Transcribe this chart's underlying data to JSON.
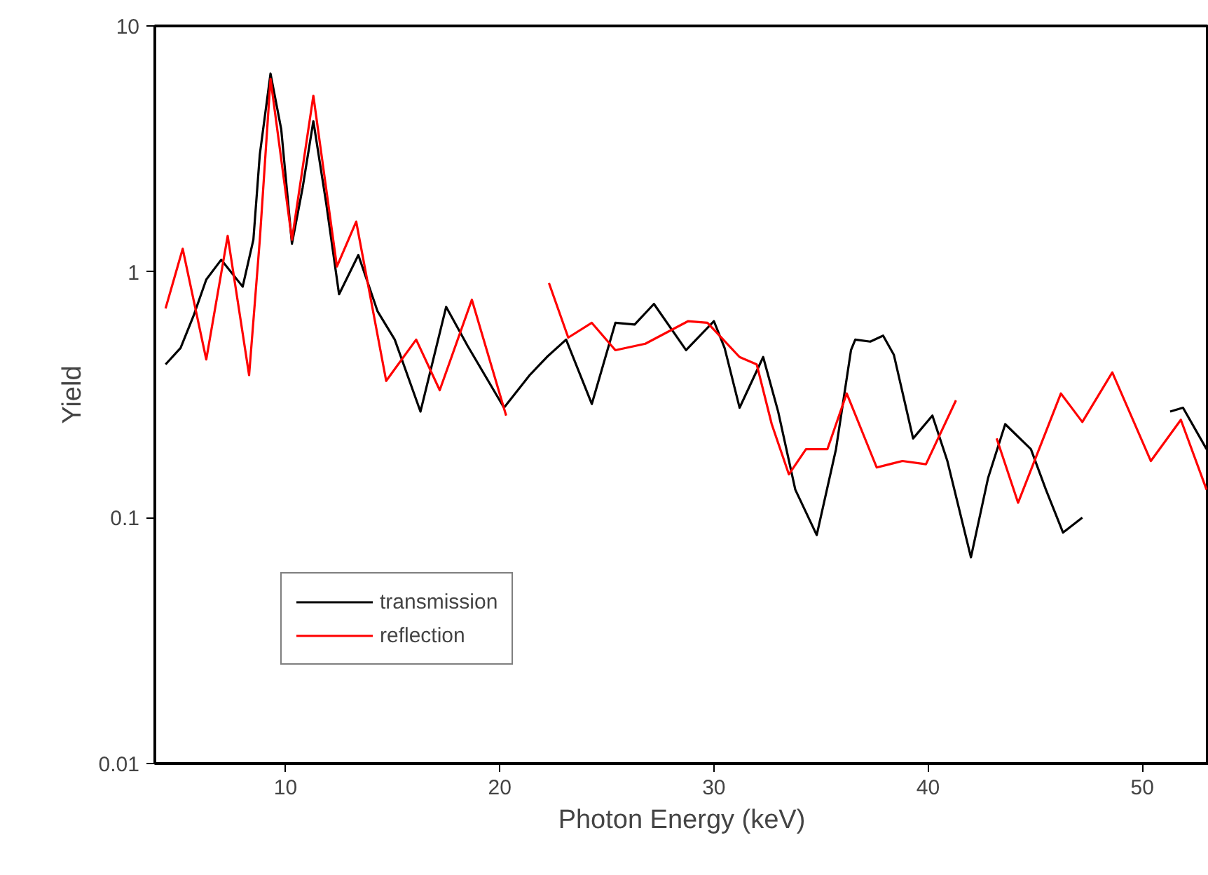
{
  "chart_data": {
    "type": "line",
    "xlabel": "Photon Energy (keV)",
    "ylabel": "Yield",
    "log": "y",
    "xlim": [
      3.9,
      53.1
    ],
    "ylim": [
      0.01,
      10
    ],
    "xticks": [
      10,
      20,
      30,
      40,
      50
    ],
    "yticks": [
      0.01,
      0.1,
      1,
      10
    ],
    "grid": false,
    "legend": "bottom left",
    "marker": "none",
    "line_style": "solid",
    "series": [
      {
        "name": "transmission",
        "color": "#000000",
        "x": [
          4.4,
          5.1,
          5.7,
          6.3,
          7.0,
          8.0,
          8.5,
          8.8,
          9.3,
          9.8,
          10.3,
          10.8,
          11.3,
          11.9,
          12.5,
          13.4,
          14.3,
          15.1,
          16.3,
          17.5,
          18.5,
          20.2,
          21.4,
          22.2,
          23.1,
          24.3,
          25.4,
          26.3,
          27.2,
          28.7,
          30.0,
          30.5,
          31.2,
          32.3,
          33.0,
          33.8,
          34.8,
          35.7,
          36.4,
          36.6,
          37.3,
          37.9,
          38.4,
          39.3,
          40.2,
          40.9,
          42.0,
          42.8,
          43.6,
          44.8,
          45.5,
          46.3,
          47.2,
          49.0,
          51.3,
          51.9,
          53.0
        ],
        "values": [
          0.42,
          0.49,
          0.66,
          0.93,
          1.12,
          0.87,
          1.35,
          3.0,
          6.4,
          3.8,
          1.3,
          2.2,
          4.1,
          1.9,
          0.81,
          1.17,
          0.69,
          0.53,
          0.27,
          0.72,
          0.5,
          0.28,
          0.38,
          0.45,
          0.53,
          0.29,
          0.62,
          0.61,
          0.74,
          0.48,
          0.63,
          0.49,
          0.28,
          0.45,
          0.27,
          0.13,
          0.085,
          0.19,
          0.48,
          0.53,
          0.52,
          0.55,
          0.46,
          0.21,
          0.26,
          0.17,
          0.069,
          0.145,
          0.24,
          0.19,
          0.13,
          0.087,
          0.1,
          null,
          0.27,
          0.28,
          0.19
        ]
      },
      {
        "name": "reflection",
        "color": "#ff0000",
        "x": [
          4.4,
          5.2,
          6.3,
          7.3,
          8.3,
          8.8,
          9.3,
          10.3,
          11.3,
          12.4,
          13.3,
          14.7,
          16.1,
          17.2,
          18.7,
          20.3,
          21.3,
          22.3,
          23.2,
          24.3,
          25.4,
          26.8,
          28.8,
          29.7,
          31.2,
          32.0,
          32.7,
          33.5,
          34.3,
          35.3,
          36.2,
          37.6,
          38.8,
          39.9,
          41.3,
          42.3,
          43.2,
          44.2,
          46.2,
          47.2,
          48.6,
          50.4,
          51.8,
          53.0
        ],
        "values": [
          0.71,
          1.24,
          0.44,
          1.4,
          0.38,
          1.35,
          6.1,
          1.35,
          5.2,
          1.05,
          1.6,
          0.36,
          0.53,
          0.33,
          0.77,
          0.26,
          null,
          0.9,
          0.54,
          0.62,
          0.48,
          0.51,
          0.63,
          0.62,
          0.45,
          0.42,
          0.24,
          0.15,
          0.19,
          0.19,
          0.32,
          0.16,
          0.17,
          0.165,
          0.3,
          null,
          0.21,
          0.115,
          0.32,
          0.245,
          0.39,
          0.17,
          0.25,
          0.13
        ]
      }
    ]
  }
}
